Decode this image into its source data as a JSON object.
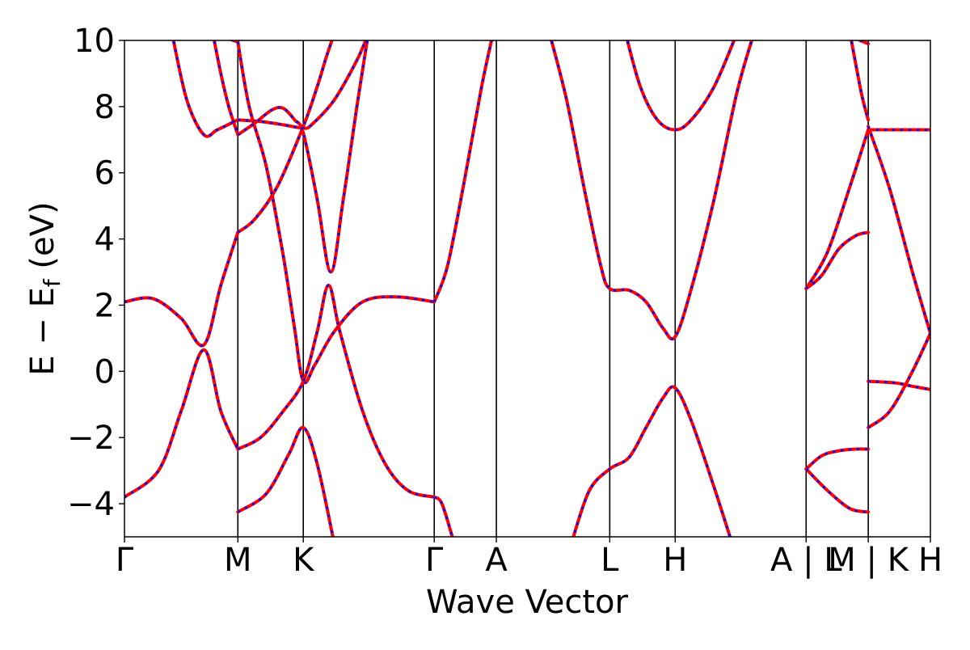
{
  "chart_data": {
    "type": "line",
    "title": "",
    "xlabel": "Wave Vector",
    "ylabel_main": "E − E",
    "ylabel_sub": "f",
    "ylabel_unit": " (eV)",
    "ylim": [
      -5,
      10
    ],
    "yticks": [
      {
        "value": -4,
        "label": "−4"
      },
      {
        "value": -2,
        "label": "−2"
      },
      {
        "value": 0,
        "label": "0"
      },
      {
        "value": 2,
        "label": "2"
      },
      {
        "value": 4,
        "label": "4"
      },
      {
        "value": 6,
        "label": "6"
      },
      {
        "value": 8,
        "label": "8"
      },
      {
        "value": 10,
        "label": "10"
      }
    ],
    "kpoints": [
      {
        "label": "Γ",
        "x": 0.0
      },
      {
        "label": "M",
        "x": 1.0
      },
      {
        "label": "K",
        "x": 1.577
      },
      {
        "label": "Γ",
        "x": 2.732
      },
      {
        "label": "A",
        "x": 3.28
      },
      {
        "label": "L",
        "x": 4.28
      },
      {
        "label": "H",
        "x": 4.857
      },
      {
        "label": "A | L",
        "x": 6.012
      },
      {
        "label": "M | K",
        "x": 6.56
      },
      {
        "label": "H",
        "x": 7.108
      }
    ],
    "series_colors": {
      "primary": "#ff0000",
      "overlay": "#0000ff"
    },
    "bands": [
      {
        "segment": "Γ-M",
        "points": [
          [
            0,
            2.1
          ],
          [
            0.25,
            2.2
          ],
          [
            0.5,
            1.6
          ],
          [
            0.7,
            0.8
          ],
          [
            0.85,
            2.6
          ],
          [
            1.0,
            4.2
          ]
        ]
      },
      {
        "segment": "Γ-M",
        "points": [
          [
            0,
            -3.8
          ],
          [
            0.3,
            -3.0
          ],
          [
            0.5,
            -1.2
          ],
          [
            0.7,
            0.65
          ],
          [
            0.85,
            -1.2
          ],
          [
            1.0,
            -2.35
          ]
        ]
      },
      {
        "segment": "Γ-M",
        "points": [
          [
            0.42,
            10.2
          ],
          [
            0.55,
            8.2
          ],
          [
            0.7,
            7.15
          ],
          [
            0.82,
            7.3
          ],
          [
            1.0,
            7.6
          ]
        ]
      },
      {
        "segment": "Γ-M",
        "points": [
          [
            0.78,
            10.2
          ],
          [
            0.85,
            9.0
          ],
          [
            0.92,
            8.0
          ],
          [
            1.0,
            7.15
          ]
        ]
      },
      {
        "segment": "Γ-M",
        "points": [
          [
            0.88,
            10.1
          ],
          [
            1.0,
            9.95
          ]
        ]
      },
      {
        "segment": "M-K",
        "points": [
          [
            1.0,
            4.2
          ],
          [
            1.15,
            4.6
          ],
          [
            1.35,
            5.6
          ],
          [
            1.577,
            7.4
          ],
          [
            1.7,
            8.6
          ],
          [
            1.78,
            9.5
          ],
          [
            1.85,
            10.2
          ]
        ]
      },
      {
        "segment": "M-K",
        "points": [
          [
            1.0,
            7.6
          ],
          [
            1.2,
            7.55
          ],
          [
            1.4,
            7.45
          ],
          [
            1.577,
            7.35
          ],
          [
            1.65,
            7.45
          ],
          [
            1.85,
            8.2
          ],
          [
            2.05,
            9.4
          ],
          [
            2.15,
            10.2
          ]
        ]
      },
      {
        "segment": "M-K",
        "points": [
          [
            1.0,
            9.95
          ],
          [
            1.1,
            8.0
          ],
          [
            1.25,
            6.2
          ],
          [
            1.4,
            3.5
          ],
          [
            1.5,
            1.3
          ],
          [
            1.577,
            -0.3
          ],
          [
            1.68,
            0.2
          ],
          [
            1.85,
            1.2
          ],
          [
            2.1,
            2.1
          ],
          [
            2.4,
            2.25
          ],
          [
            2.732,
            2.1
          ]
        ]
      },
      {
        "segment": "M-K",
        "points": [
          [
            1.0,
            7.15
          ],
          [
            1.15,
            7.5
          ],
          [
            1.3,
            7.9
          ],
          [
            1.4,
            7.95
          ],
          [
            1.5,
            7.6
          ],
          [
            1.577,
            7.2
          ],
          [
            1.7,
            5.2
          ],
          [
            1.82,
            3.0
          ],
          [
            1.93,
            5.2
          ],
          [
            2.05,
            8.0
          ],
          [
            2.15,
            10.2
          ]
        ]
      },
      {
        "segment": "M-K",
        "points": [
          [
            1.0,
            -2.35
          ],
          [
            1.2,
            -2.0
          ],
          [
            1.4,
            -1.2
          ],
          [
            1.577,
            -0.3
          ],
          [
            1.7,
            1.2
          ],
          [
            1.8,
            2.6
          ],
          [
            1.9,
            1.2
          ],
          [
            2.1,
            -1.2
          ],
          [
            2.3,
            -2.8
          ],
          [
            2.5,
            -3.6
          ],
          [
            2.732,
            -3.8
          ]
        ]
      },
      {
        "segment": "M-K",
        "points": [
          [
            1.0,
            -4.25
          ],
          [
            1.25,
            -3.7
          ],
          [
            1.45,
            -2.5
          ],
          [
            1.577,
            -1.7
          ],
          [
            1.7,
            -2.8
          ],
          [
            1.85,
            -5.2
          ]
        ]
      },
      {
        "segment": "Γ-A",
        "points": [
          [
            2.732,
            2.1
          ],
          [
            2.85,
            3.2
          ],
          [
            3.0,
            5.8
          ],
          [
            3.15,
            8.6
          ],
          [
            3.25,
            10.2
          ]
        ]
      },
      {
        "segment": "Γ-A",
        "points": [
          [
            2.732,
            -3.8
          ],
          [
            2.8,
            -4.0
          ],
          [
            2.9,
            -5.1
          ]
        ]
      },
      {
        "segment": "A-L",
        "points": [
          [
            3.75,
            10.2
          ],
          [
            3.9,
            8.2
          ],
          [
            4.05,
            5.6
          ],
          [
            4.2,
            3.2
          ],
          [
            4.28,
            2.5
          ],
          [
            4.45,
            2.45
          ],
          [
            4.6,
            2.1
          ],
          [
            4.75,
            1.3
          ],
          [
            4.857,
            1.05
          ],
          [
            5.0,
            2.5
          ],
          [
            5.2,
            5.2
          ],
          [
            5.4,
            8.4
          ],
          [
            5.55,
            10.2
          ]
        ]
      },
      {
        "segment": "L-H",
        "points": [
          [
            4.42,
            10.2
          ],
          [
            4.55,
            8.6
          ],
          [
            4.7,
            7.6
          ],
          [
            4.857,
            7.3
          ],
          [
            5.0,
            7.6
          ],
          [
            5.2,
            8.6
          ],
          [
            5.4,
            10.2
          ]
        ]
      },
      {
        "segment": "L-H",
        "points": [
          [
            3.95,
            -5.1
          ],
          [
            4.1,
            -3.6
          ],
          [
            4.28,
            -2.95
          ],
          [
            4.45,
            -2.6
          ],
          [
            4.6,
            -1.7
          ],
          [
            4.75,
            -0.8
          ],
          [
            4.857,
            -0.5
          ],
          [
            5.0,
            -1.5
          ],
          [
            5.2,
            -3.5
          ],
          [
            5.35,
            -5.1
          ]
        ]
      },
      {
        "segment": "L-M",
        "points": [
          [
            6.012,
            2.5
          ],
          [
            6.15,
            2.9
          ],
          [
            6.3,
            3.7
          ],
          [
            6.45,
            4.1
          ],
          [
            6.56,
            4.2
          ]
        ]
      },
      {
        "segment": "L-M",
        "points": [
          [
            6.012,
            2.5
          ],
          [
            6.2,
            3.6
          ],
          [
            6.4,
            5.6
          ],
          [
            6.56,
            7.3
          ]
        ]
      },
      {
        "segment": "L-M",
        "points": [
          [
            6.012,
            -2.95
          ],
          [
            6.15,
            -2.55
          ],
          [
            6.3,
            -2.4
          ],
          [
            6.45,
            -2.35
          ],
          [
            6.56,
            -2.35
          ]
        ]
      },
      {
        "segment": "L-M",
        "points": [
          [
            6.012,
            -2.95
          ],
          [
            6.2,
            -3.6
          ],
          [
            6.4,
            -4.15
          ],
          [
            6.56,
            -4.25
          ]
        ]
      },
      {
        "segment": "L-M",
        "points": [
          [
            6.4,
            10.2
          ],
          [
            6.5,
            8.4
          ],
          [
            6.56,
            7.6
          ]
        ]
      },
      {
        "segment": "L-M",
        "points": [
          [
            6.42,
            10.1
          ],
          [
            6.56,
            9.9
          ]
        ]
      },
      {
        "segment": "K-H",
        "points": [
          [
            6.56,
            7.3
          ],
          [
            6.75,
            7.3
          ],
          [
            7.0,
            7.3
          ],
          [
            7.108,
            7.3
          ]
        ]
      },
      {
        "segment": "K-H",
        "points": [
          [
            6.56,
            7.4
          ],
          [
            6.75,
            5.5
          ],
          [
            6.95,
            3.0
          ],
          [
            7.108,
            1.15
          ]
        ]
      },
      {
        "segment": "K-H",
        "points": [
          [
            6.56,
            -1.7
          ],
          [
            6.75,
            -1.2
          ],
          [
            6.95,
            0.0
          ],
          [
            7.108,
            1.15
          ]
        ]
      },
      {
        "segment": "K-H",
        "points": [
          [
            6.56,
            -0.3
          ],
          [
            6.8,
            -0.35
          ],
          [
            6.95,
            -0.45
          ],
          [
            7.108,
            -0.55
          ]
        ]
      }
    ]
  }
}
